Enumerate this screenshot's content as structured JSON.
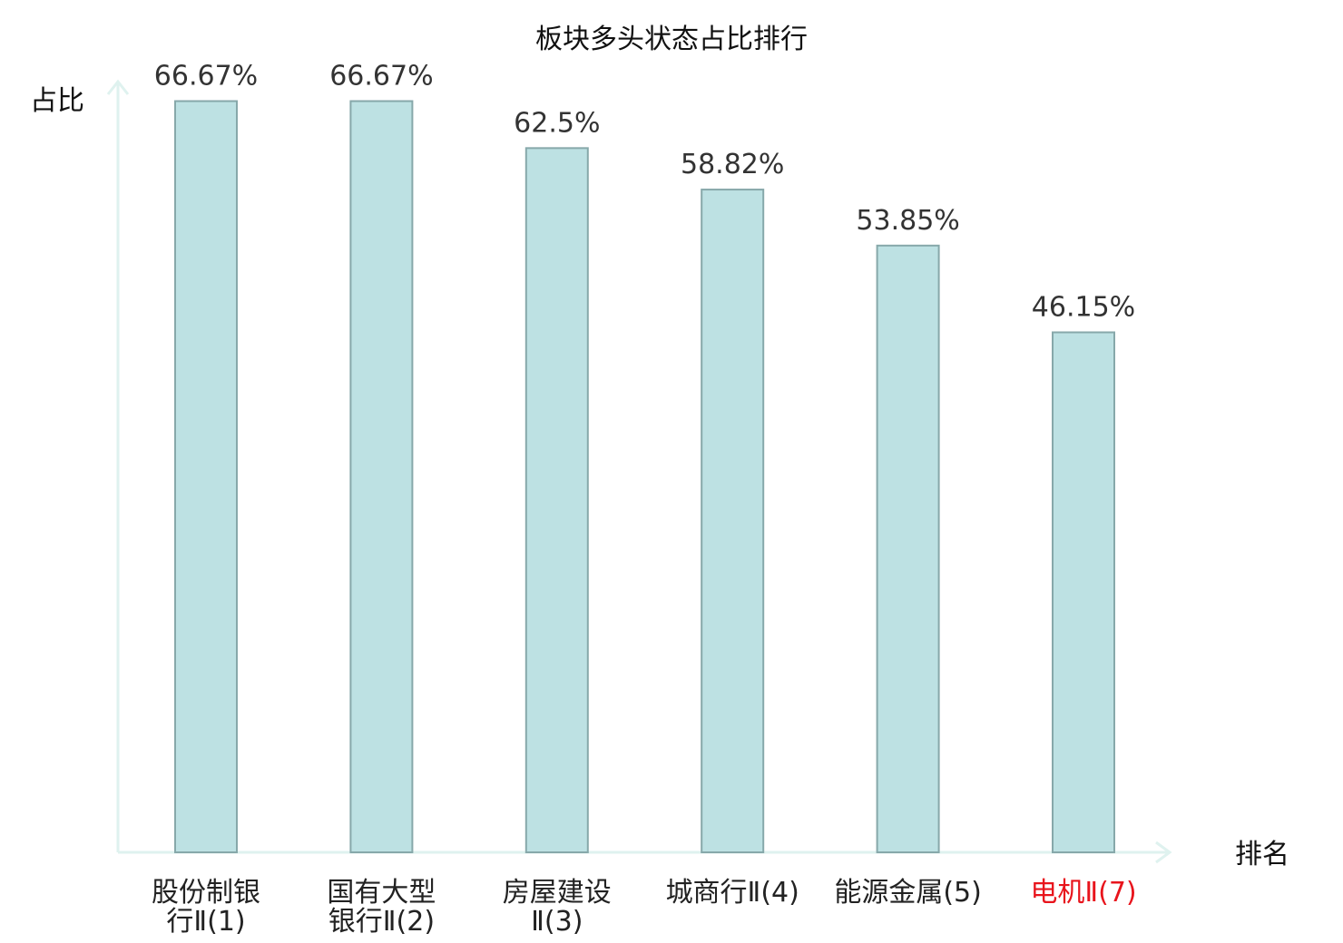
{
  "chart_data": {
    "type": "bar",
    "title": "板块多头状态占比排行",
    "ylabel": "占比",
    "xlabel": "排名",
    "ylim": [
      0,
      75
    ],
    "grid": false,
    "categories": [
      [
        "股份制银",
        "行Ⅱ(1)"
      ],
      [
        "国有大型",
        "银行Ⅱ(2)"
      ],
      [
        "房屋建设",
        "Ⅱ(3)"
      ],
      [
        "城商行Ⅱ(4)"
      ],
      [
        "能源金属(5)"
      ],
      [
        "电机Ⅱ(7)"
      ]
    ],
    "values": [
      66.67,
      66.67,
      62.5,
      58.82,
      53.85,
      46.15
    ],
    "value_labels": [
      "66.67%",
      "66.67%",
      "62.5%",
      "58.82%",
      "53.85%",
      "46.15%"
    ],
    "highlight_index": 5,
    "colors": {
      "bar_fill": "#bde1e3",
      "bar_stroke": "#87a8aa",
      "axis": "#dff2ef",
      "highlight_text": "#e8141c",
      "normal_text": "#222222"
    }
  }
}
